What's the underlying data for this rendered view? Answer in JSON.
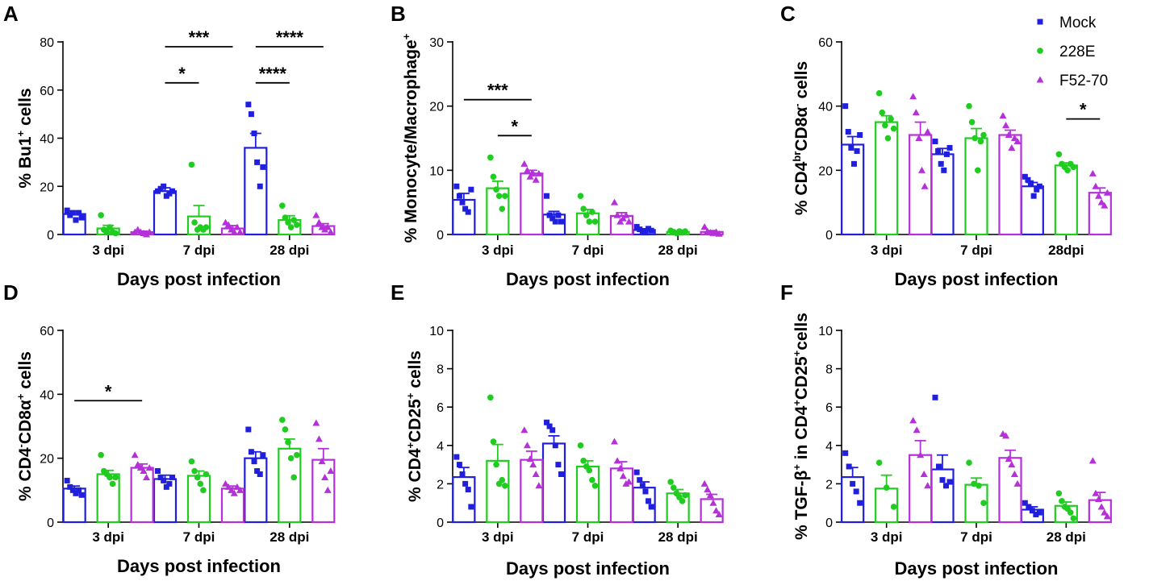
{
  "legend": {
    "position": "top-right",
    "items": [
      {
        "label": "Mock",
        "marker": "square",
        "color": "#1f1fdd"
      },
      {
        "label": "228E",
        "marker": "circle",
        "color": "#1fcc1f"
      },
      {
        "label": "F52-70",
        "marker": "triangle",
        "color": "#b530d9"
      }
    ]
  },
  "chart_data": [
    {
      "panel": "A",
      "type": "bar",
      "categories": [
        "3 dpi",
        "7 dpi",
        "28 dpi"
      ],
      "xlabel": "Days post infection",
      "ylabel": {
        "pre": "% Bu1",
        "sup1": "+",
        "mid": " cells",
        "sub1": "",
        "sup2": "",
        "post": ""
      },
      "ylim": [
        0,
        80
      ],
      "yticks": [
        0,
        20,
        40,
        60,
        80
      ],
      "series": [
        {
          "name": "Mock",
          "values": [
            8.5,
            18,
            36
          ],
          "sem": [
            1.2,
            1.4,
            6
          ],
          "points": [
            [
              10,
              8,
              9,
              6,
              9,
              7
            ],
            [
              18,
              19,
              20,
              16,
              17,
              18
            ],
            [
              54,
              50,
              42,
              30,
              20,
              28
            ]
          ]
        },
        {
          "name": "228E",
          "values": [
            2.5,
            7.5,
            6
          ],
          "sem": [
            1.3,
            4.5,
            1.8
          ],
          "points": [
            [
              8,
              2,
              1,
              3,
              1,
              0.5
            ],
            [
              29,
              5,
              2,
              3,
              2,
              3
            ],
            [
              12,
              7,
              5,
              3,
              6,
              4
            ]
          ]
        },
        {
          "name": "F52-70",
          "values": [
            1,
            2.5,
            3.5
          ],
          "sem": [
            0.4,
            1.2,
            1
          ],
          "points": [
            [
              1,
              2,
              1,
              0.5,
              0,
              1
            ],
            [
              5,
              4,
              2,
              1,
              3,
              1
            ],
            [
              8,
              5,
              3,
              2,
              3,
              1
            ]
          ]
        }
      ],
      "significance": [
        {
          "from": [
            1,
            0
          ],
          "to": [
            1,
            2
          ],
          "label": "***",
          "y": 78
        },
        {
          "from": [
            1,
            0
          ],
          "to": [
            1,
            1
          ],
          "label": "*",
          "y": 63
        },
        {
          "from": [
            2,
            0
          ],
          "to": [
            2,
            2
          ],
          "label": "****",
          "y": 78
        },
        {
          "from": [
            2,
            0
          ],
          "to": [
            2,
            1
          ],
          "label": "****",
          "y": 63
        }
      ]
    },
    {
      "panel": "B",
      "type": "bar",
      "categories": [
        "3 dpi",
        "7 dpi",
        "28 dpi"
      ],
      "xlabel": "Days post infection",
      "ylabel": {
        "pre": "% Monocyte/Macrophage",
        "sup1": "+",
        "mid": "",
        "sub1": "",
        "sup2": "",
        "post": ""
      },
      "ylim": [
        0,
        30
      ],
      "yticks": [
        0,
        10,
        20,
        30
      ],
      "series": [
        {
          "name": "Mock",
          "values": [
            5.4,
            3.1,
            0.7
          ],
          "sem": [
            1,
            0.5,
            0.2
          ],
          "points": [
            [
              7.5,
              6,
              5,
              4,
              3.5,
              7
            ],
            [
              6,
              3,
              2.5,
              2,
              3,
              2
            ],
            [
              1.2,
              0.8,
              0.5,
              0.3,
              0.9,
              0.6
            ]
          ]
        },
        {
          "name": "228E",
          "values": [
            7.2,
            3.3,
            0.4
          ],
          "sem": [
            1.1,
            0.6,
            0.1
          ],
          "points": [
            [
              12,
              9,
              7,
              6,
              4,
              6
            ],
            [
              6,
              4,
              3,
              2,
              3.5,
              2
            ],
            [
              0.6,
              0.4,
              0.2,
              0.5,
              0.3,
              0.5
            ]
          ]
        },
        {
          "name": "F52-70",
          "values": [
            9.5,
            2.9,
            0.4
          ],
          "sem": [
            0.5,
            0.5,
            0.2
          ],
          "points": [
            [
              11,
              10,
              9,
              9.5,
              8.5,
              9.5
            ],
            [
              5,
              3,
              2,
              2.5,
              3,
              2
            ],
            [
              1.2,
              0.5,
              0.3,
              0.2,
              0.4,
              0.1
            ]
          ]
        }
      ],
      "significance": [
        {
          "from": [
            0,
            0
          ],
          "to": [
            0,
            2
          ],
          "label": "***",
          "y": 21
        },
        {
          "from": [
            0,
            1
          ],
          "to": [
            0,
            2
          ],
          "label": "*",
          "y": 15.4
        }
      ]
    },
    {
      "panel": "C",
      "type": "bar",
      "categories": [
        "3 dpi",
        "7 dpi",
        "28dpi"
      ],
      "xlabel": "Days post infection",
      "ylabel": {
        "pre": "% CD4",
        "sup1": "br",
        "mid": "CD8α",
        "sub1": "",
        "sup2": "-",
        "post": " cells"
      },
      "ylim": [
        0,
        60
      ],
      "yticks": [
        0,
        20,
        40,
        60
      ],
      "series": [
        {
          "name": "Mock",
          "values": [
            28,
            25,
            15
          ],
          "sem": [
            2.5,
            1.8,
            1.2
          ],
          "points": [
            [
              40,
              32,
              27,
              22,
              26,
              31
            ],
            [
              29,
              26,
              22,
              20,
              25,
              27
            ],
            [
              18,
              17,
              16,
              12,
              14,
              15
            ]
          ]
        },
        {
          "name": "228E",
          "values": [
            35,
            30,
            21.5
          ],
          "sem": [
            2,
            3,
            0.8
          ],
          "points": [
            [
              44,
              38,
              34,
              30,
              36,
              33
            ],
            [
              40,
              35,
              30,
              20,
              29,
              31
            ],
            [
              25,
              22,
              21,
              20,
              22,
              21
            ]
          ]
        },
        {
          "name": "F52-70",
          "values": [
            31,
            31,
            13
          ],
          "sem": [
            4,
            1.5,
            1.5
          ],
          "points": [
            [
              43,
              38,
              30,
              20,
              15,
              32
            ],
            [
              37,
              34,
              31,
              27,
              30,
              29
            ],
            [
              19,
              15,
              12,
              10,
              9,
              13
            ]
          ]
        }
      ],
      "significance": [
        {
          "from": [
            2,
            1
          ],
          "to": [
            2,
            2
          ],
          "label": "*",
          "y": 36
        }
      ]
    },
    {
      "panel": "D",
      "type": "bar",
      "categories": [
        "3 dpi",
        "7 dpi",
        "28 dpi"
      ],
      "xlabel": "Days post infection",
      "ylabel": {
        "pre": "% CD4",
        "sup1": "-",
        "mid": "CD8α",
        "sub1": "",
        "sup2": "+",
        "post": " cells"
      },
      "ylim": [
        0,
        60
      ],
      "yticks": [
        0,
        20,
        40,
        60
      ],
      "series": [
        {
          "name": "Mock",
          "values": [
            10.5,
            13.5,
            20
          ],
          "sem": [
            0.8,
            1.2,
            2
          ],
          "points": [
            [
              13,
              11,
              10,
              9,
              10,
              8.5
            ],
            [
              16,
              14,
              13,
              11,
              12,
              14
            ],
            [
              29,
              22,
              19,
              16,
              15,
              21
            ]
          ]
        },
        {
          "name": "228E",
          "values": [
            15,
            14.5,
            23
          ],
          "sem": [
            1.2,
            1.5,
            3
          ],
          "points": [
            [
              21,
              16,
              15,
              14,
              12,
              14
            ],
            [
              19,
              16,
              14,
              12,
              10,
              15
            ],
            [
              32,
              29,
              25,
              20,
              14,
              21
            ]
          ]
        },
        {
          "name": "F52-70",
          "values": [
            17,
            10.5,
            19.5
          ],
          "sem": [
            1.2,
            0.8,
            3.5
          ],
          "points": [
            [
              21,
              18,
              17,
              16,
              14,
              17
            ],
            [
              12,
              11,
              10,
              9,
              11,
              10
            ],
            [
              31,
              26,
              19,
              14,
              10,
              16
            ]
          ]
        }
      ],
      "significance": [
        {
          "from": [
            0,
            0
          ],
          "to": [
            0,
            2
          ],
          "label": "*",
          "y": 38
        }
      ]
    },
    {
      "panel": "E",
      "type": "bar",
      "categories": [
        "3 dpi",
        "7 dpi",
        "28 dpi"
      ],
      "xlabel": "Days post infection",
      "ylabel": {
        "pre": "% CD4",
        "sup1": "+",
        "mid": "CD25",
        "sub1": "",
        "sup2": "+",
        "post": " cells"
      },
      "ylim": [
        0,
        10
      ],
      "yticks": [
        0,
        2,
        4,
        6,
        8,
        10
      ],
      "series": [
        {
          "name": "Mock",
          "values": [
            2.35,
            4.1,
            1.8
          ],
          "sem": [
            0.5,
            0.4,
            0.3
          ],
          "points": [
            [
              3.4,
              3.0,
              2.5,
              2.0,
              1.7,
              0.8
            ],
            [
              5.2,
              5.0,
              4.8,
              4.0,
              3.0,
              2.5
            ],
            [
              2.6,
              2.2,
              1.9,
              1.6,
              1.1,
              0.8
            ]
          ]
        },
        {
          "name": "228E",
          "values": [
            3.2,
            2.9,
            1.5
          ],
          "sem": [
            0.85,
            0.3,
            0.2
          ],
          "points": [
            [
              6.5,
              4.2,
              3.0,
              2.0,
              2.2,
              1.9
            ],
            [
              4.0,
              3.2,
              2.9,
              2.7,
              2.2,
              1.9
            ],
            [
              2.1,
              1.8,
              1.5,
              1.3,
              1.1,
              1.4
            ]
          ]
        },
        {
          "name": "F52-70",
          "values": [
            3.25,
            2.8,
            1.2
          ],
          "sem": [
            0.45,
            0.35,
            0.25
          ],
          "points": [
            [
              4.8,
              4.0,
              3.3,
              3.0,
              2.5,
              1.9
            ],
            [
              4.2,
              3.2,
              2.8,
              2.4,
              2.0,
              2.1
            ],
            [
              2.0,
              1.7,
              1.4,
              1.0,
              0.6,
              0.4
            ]
          ]
        }
      ],
      "significance": []
    },
    {
      "panel": "F",
      "type": "bar",
      "categories": [
        "3 dpi",
        "7 dpi",
        "28 dpi"
      ],
      "xlabel": "Days post infection",
      "ylabel": {
        "pre": "% TGF-β",
        "sup1": "+",
        "mid": " in CD4",
        "sub1": "",
        "sup2": "+",
        "post": "CD25",
        "sup3": "+",
        "post2": "cells"
      },
      "ylim": [
        0,
        10
      ],
      "yticks": [
        0,
        2,
        4,
        6,
        8,
        10
      ],
      "series": [
        {
          "name": "Mock",
          "values": [
            2.35,
            2.75,
            0.65
          ],
          "sem": [
            0.5,
            0.75,
            0.15
          ],
          "points": [
            [
              3.6,
              2.9,
              2.0,
              1.6,
              1.0
            ],
            [
              6.5,
              2.9,
              2.2,
              1.9,
              2.1
            ],
            [
              1.0,
              0.8,
              0.6,
              0.4,
              0.5
            ]
          ]
        },
        {
          "name": "228E",
          "values": [
            1.75,
            1.95,
            0.85
          ],
          "sem": [
            0.7,
            0.35,
            0.2
          ],
          "points": [
            [
              3.1,
              1.8,
              0.8
            ],
            [
              3.1,
              2.0,
              1.9,
              1.0
            ],
            [
              1.5,
              1.1,
              0.8,
              0.7,
              0.5,
              0.2
            ]
          ]
        },
        {
          "name": "F52-70",
          "values": [
            3.5,
            3.35,
            1.15
          ],
          "sem": [
            0.75,
            0.4,
            0.4
          ],
          "points": [
            [
              5.3,
              4.8,
              3.5,
              2.5,
              1.9
            ],
            [
              4.6,
              4.5,
              3.3,
              3.0,
              2.5,
              2.0
            ],
            [
              3.2,
              1.5,
              1.2,
              0.8,
              0.5,
              0.3
            ]
          ]
        }
      ],
      "significance": []
    }
  ]
}
